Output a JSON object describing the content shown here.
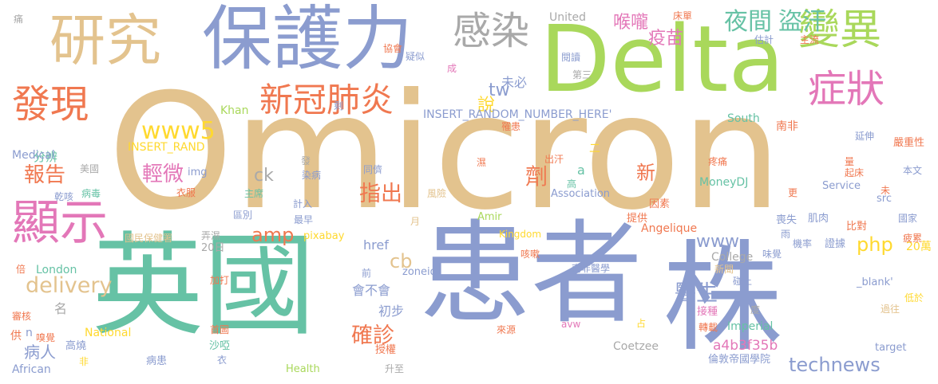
{
  "words": [
    {
      "text": "Omicron",
      "color": "#e3c38e"
    },
    {
      "text": "Delta",
      "color": "#a9d85b"
    },
    {
      "text": "保護力",
      "color": "#8b9ccf"
    },
    {
      "text": "研究",
      "color": "#e3c38e"
    },
    {
      "text": "感染",
      "color": "#a9a9a9"
    },
    {
      "text": "變異",
      "color": "#a9d85b"
    },
    {
      "text": "症狀",
      "color": "#e377b8"
    },
    {
      "text": "夜間",
      "color": "#66c2a5"
    },
    {
      "text": "盜汗",
      "color": "#66c2a5"
    },
    {
      "text": "發現",
      "color": "#f07850"
    },
    {
      "text": "新冠肺炎",
      "color": "#f07850"
    },
    {
      "text": "英國",
      "color": "#66c2a5"
    },
    {
      "text": "患者",
      "color": "#8b9ccf"
    },
    {
      "text": "株",
      "color": "#8b9ccf"
    },
    {
      "text": "顯示",
      "color": "#e377b8"
    },
    {
      "text": "報告",
      "color": "#f07850"
    },
    {
      "text": "輕微",
      "color": "#e377b8"
    },
    {
      "text": "指出",
      "color": "#f07850"
    },
    {
      "text": "醫生",
      "color": "#8b9ccf"
    },
    {
      "text": "確診",
      "color": "#f07850"
    },
    {
      "text": "病人",
      "color": "#8b9ccf"
    },
    {
      "text": "technews",
      "color": "#8b9ccf"
    },
    {
      "text": "www5",
      "color": "#ffd92f"
    },
    {
      "text": "www",
      "color": "#8b9ccf"
    },
    {
      "text": "amp",
      "color": "#f07850"
    },
    {
      "text": "delivery",
      "color": "#e3c38e"
    },
    {
      "text": "php",
      "color": "#ffd92f"
    },
    {
      "text": "cb",
      "color": "#e3c38e"
    },
    {
      "text": "tw",
      "color": "#8b9ccf"
    },
    {
      "text": "ck",
      "color": "#a9a9a9"
    },
    {
      "text": "a4b3f35b",
      "color": "#e377b8"
    },
    {
      "text": "喉嚨",
      "color": "#e377b8"
    },
    {
      "text": "疫苗",
      "color": "#e377b8"
    },
    {
      "text": "說",
      "color": "#ffd92f"
    },
    {
      "text": "劑",
      "color": "#f07850"
    },
    {
      "text": "新",
      "color": "#f07850"
    },
    {
      "text": "分辨",
      "color": "#66c2a5"
    },
    {
      "text": "名",
      "color": "#a9a9a9"
    },
    {
      "text": "href",
      "color": "#8b9ccf"
    },
    {
      "text": "會不會",
      "color": "#8b9ccf"
    },
    {
      "text": "初步",
      "color": "#8b9ccf"
    },
    {
      "text": "未必",
      "color": "#8b9ccf"
    },
    {
      "text": "INSERT_RANDOM_NUMBER_HERE'",
      "color": "#8b9ccf"
    },
    {
      "text": "INSERT_RAND",
      "color": "#ffd92f"
    },
    {
      "text": "United",
      "color": "#a9a9a9"
    },
    {
      "text": "Kingdom",
      "color": "#ffd92f"
    },
    {
      "text": "South",
      "color": "#66c2a5"
    },
    {
      "text": "Khan",
      "color": "#a9d85b"
    },
    {
      "text": "Medical",
      "color": "#8b9ccf"
    },
    {
      "text": "London",
      "color": "#66c2a5"
    },
    {
      "text": "National",
      "color": "#ffd92f"
    },
    {
      "text": "African",
      "color": "#8b9ccf"
    },
    {
      "text": "Health",
      "color": "#a9d85b"
    },
    {
      "text": "College",
      "color": "#a9a9a9"
    },
    {
      "text": "Imperial",
      "color": "#66c2a5"
    },
    {
      "text": "Association",
      "color": "#8b9ccf"
    },
    {
      "text": "MoneyDJ",
      "color": "#66c2a5"
    },
    {
      "text": "Service",
      "color": "#8b9ccf"
    },
    {
      "text": "Angelique",
      "color": "#f07850"
    },
    {
      "text": "Coetzee",
      "color": "#a9a9a9"
    },
    {
      "text": "Amir",
      "color": "#a9d85b"
    },
    {
      "text": "pixabay",
      "color": "#ffd92f"
    },
    {
      "text": "zoneid",
      "color": "#8b9ccf"
    },
    {
      "text": "target",
      "color": "#8b9ccf"
    },
    {
      "text": "_blank'",
      "color": "#8b9ccf"
    },
    {
      "text": "avw",
      "color": "#e377b8"
    },
    {
      "text": "src",
      "color": "#8b9ccf"
    },
    {
      "text": "img",
      "color": "#8b9ccf"
    },
    {
      "text": "a",
      "color": "#66c2a5"
    },
    {
      "text": "n",
      "color": "#8b9ccf"
    },
    {
      "text": "20萬",
      "color": "#ffd92f"
    },
    {
      "text": "20日",
      "color": "#a9a9a9"
    },
    {
      "text": "南非醫學",
      "color": "#8b9ccf"
    },
    {
      "text": "倫敦帝國學院",
      "color": "#8b9ccf"
    },
    {
      "text": "國民保健署",
      "color": "#e3c38e"
    },
    {
      "text": "嚴重性",
      "color": "#f07850"
    },
    {
      "text": "本文",
      "color": "#8b9ccf"
    },
    {
      "text": "延伸",
      "color": "#8b9ccf"
    },
    {
      "text": "南非",
      "color": "#f07850"
    },
    {
      "text": "罹患",
      "color": "#f07850"
    },
    {
      "text": "出汗",
      "color": "#f07850"
    },
    {
      "text": "疼痛",
      "color": "#f07850"
    },
    {
      "text": "因素",
      "color": "#f07850"
    },
    {
      "text": "提供",
      "color": "#f07850"
    },
    {
      "text": "肌肉",
      "color": "#8b9ccf"
    },
    {
      "text": "喪失",
      "color": "#8b9ccf"
    },
    {
      "text": "比對",
      "color": "#f07850"
    },
    {
      "text": "國家",
      "color": "#8b9ccf"
    },
    {
      "text": "疲累",
      "color": "#f07850"
    },
    {
      "text": "低於",
      "color": "#ffd92f"
    },
    {
      "text": "過往",
      "color": "#e3c38e"
    },
    {
      "text": "機率",
      "color": "#8b9ccf"
    },
    {
      "text": "證據",
      "color": "#8b9ccf"
    },
    {
      "text": "味覺",
      "color": "#8b9ccf"
    },
    {
      "text": "新聞",
      "color": "#e3c38e"
    },
    {
      "text": "碰上",
      "color": "#8b9ccf"
    },
    {
      "text": "接種",
      "color": "#e377b8"
    },
    {
      "text": "轉載",
      "color": "#f07850"
    },
    {
      "text": "來源",
      "color": "#f07850"
    },
    {
      "text": "授權",
      "color": "#f07850"
    },
    {
      "text": "升至",
      "color": "#a9a9a9"
    },
    {
      "text": "病患",
      "color": "#8b9ccf"
    },
    {
      "text": "高燒",
      "color": "#8b9ccf"
    },
    {
      "text": "嗅覺",
      "color": "#f07850"
    },
    {
      "text": "審核",
      "color": "#f07850"
    },
    {
      "text": "首圖",
      "color": "#f07850"
    },
    {
      "text": "加打",
      "color": "#f07850"
    },
    {
      "text": "沙啞",
      "color": "#66c2a5"
    },
    {
      "text": "衣",
      "color": "#8b9ccf"
    },
    {
      "text": "倍",
      "color": "#f07850"
    },
    {
      "text": "非",
      "color": "#ffd92f"
    },
    {
      "text": "供",
      "color": "#f07850"
    },
    {
      "text": "弄濕",
      "color": "#a9a9a9"
    },
    {
      "text": "區別",
      "color": "#8b9ccf"
    },
    {
      "text": "最早",
      "color": "#8b9ccf"
    },
    {
      "text": "計入",
      "color": "#8b9ccf"
    },
    {
      "text": "染病",
      "color": "#8b9ccf"
    },
    {
      "text": "主席",
      "color": "#66c2a5"
    },
    {
      "text": "衣服",
      "color": "#f07850"
    },
    {
      "text": "美國",
      "color": "#a9a9a9"
    },
    {
      "text": "乾咳",
      "color": "#8b9ccf"
    },
    {
      "text": "病毒",
      "color": "#66c2a5"
    },
    {
      "text": "同儕",
      "color": "#8b9ccf"
    },
    {
      "text": "風險",
      "color": "#e3c38e"
    },
    {
      "text": "發",
      "color": "#a9a9a9"
    },
    {
      "text": "濕",
      "color": "#f07850"
    },
    {
      "text": "二",
      "color": "#ffd92f"
    },
    {
      "text": "高",
      "color": "#66c2a5"
    },
    {
      "text": "第三",
      "color": "#a9a9a9"
    },
    {
      "text": "閱讀",
      "color": "#8b9ccf"
    },
    {
      "text": "疑似",
      "color": "#8b9ccf"
    },
    {
      "text": "協會",
      "color": "#f07850"
    },
    {
      "text": "剩",
      "color": "#8b9ccf"
    },
    {
      "text": "成",
      "color": "#e377b8"
    },
    {
      "text": "床單",
      "color": "#f07850"
    },
    {
      "text": "估計",
      "color": "#8b9ccf"
    },
    {
      "text": "主流",
      "color": "#f07850"
    },
    {
      "text": "痛",
      "color": "#a9a9a9"
    },
    {
      "text": "月",
      "color": "#e3c38e"
    },
    {
      "text": "前",
      "color": "#8b9ccf"
    },
    {
      "text": "咳嗽",
      "color": "#f07850"
    },
    {
      "text": "更",
      "color": "#f07850"
    },
    {
      "text": "量",
      "color": "#f07850"
    },
    {
      "text": "起床",
      "color": "#f07850"
    },
    {
      "text": "未",
      "color": "#f07850"
    },
    {
      "text": "雨",
      "color": "#8b9ccf"
    },
    {
      "text": "度",
      "color": "#a9a9a9"
    },
    {
      "text": "占",
      "color": "#ffd92f"
    }
  ]
}
